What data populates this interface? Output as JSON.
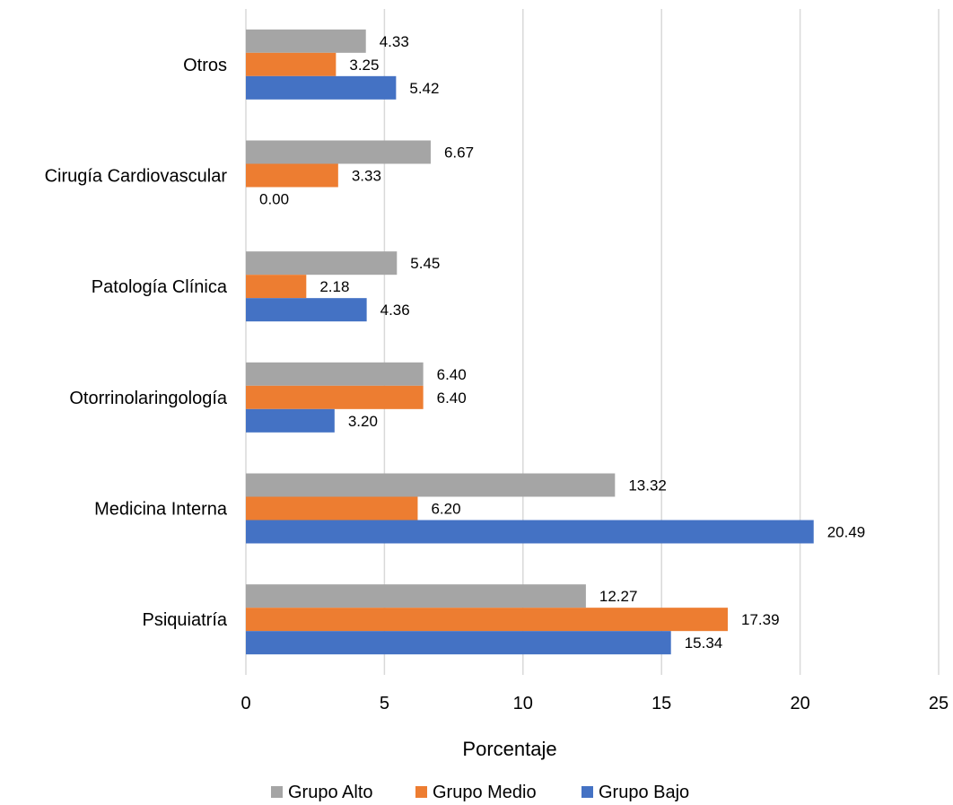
{
  "chart_data": {
    "type": "bar",
    "orientation": "horizontal",
    "categories": [
      "Otros",
      "Cirugía Cardiovascular",
      "Patología Clínica",
      "Otorrinolaringología",
      "Medicina Interna",
      "Psiquiatría"
    ],
    "series": [
      {
        "name": "Grupo Alto",
        "color": "#a5a5a5",
        "values": [
          4.33,
          6.67,
          5.45,
          6.4,
          13.32,
          12.27
        ],
        "labels": [
          "4.33",
          "6.67",
          "5.45",
          "6.40",
          "13.32",
          "12.27"
        ]
      },
      {
        "name": "Grupo Medio",
        "color": "#ed7d31",
        "values": [
          3.25,
          3.33,
          2.18,
          6.4,
          6.2,
          17.39
        ],
        "labels": [
          "3.25",
          "3.33",
          "2.18",
          "6.40",
          "6.20",
          "17.39"
        ]
      },
      {
        "name": "Grupo Bajo",
        "color": "#4472c4",
        "values": [
          5.42,
          0.0,
          4.36,
          3.2,
          20.49,
          15.34
        ],
        "labels": [
          "5.42",
          "0.00",
          "4.36",
          "3.20",
          "20.49",
          "15.34"
        ]
      }
    ],
    "xlabel": "Porcentaje",
    "ylabel": "",
    "xlim": [
      0,
      25
    ],
    "xticks": [
      0,
      5,
      10,
      15,
      20,
      25
    ],
    "grid": true,
    "legend": "bottom"
  }
}
